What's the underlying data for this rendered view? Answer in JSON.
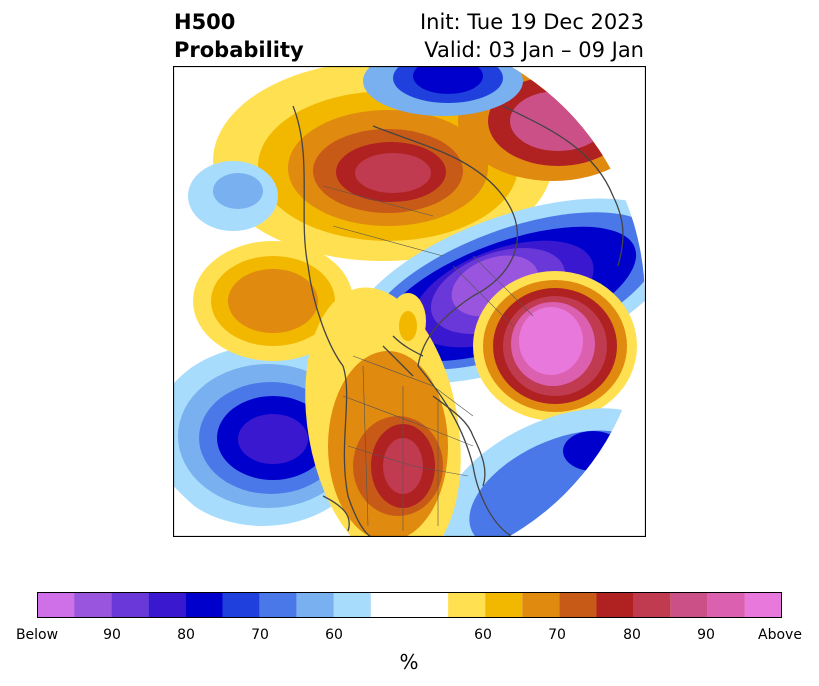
{
  "header": {
    "variable_line1": "H500",
    "variable_line2": "Probability",
    "init_line": "Init: Tue 19 Dec 2023",
    "valid_line": "Valid: 03 Jan – 09 Jan"
  },
  "colorbar": {
    "unit": "%",
    "colors": [
      "#d070e8",
      "#9a55df",
      "#6a38d8",
      "#3a18d0",
      "#0000cc",
      "#2040dd",
      "#4a78e8",
      "#78b0f0",
      "#a8dcfc",
      "#ffffff",
      "#ffe050",
      "#f2b800",
      "#e08a10",
      "#c85a18",
      "#b02222",
      "#c03a50",
      "#cc5088",
      "#dc60b0",
      "#e878dc"
    ],
    "tick_labels": [
      "Below",
      "90",
      "80",
      "70",
      "60",
      "60",
      "70",
      "80",
      "90",
      "Above"
    ]
  },
  "map": {
    "region": "North America / North Pacific / North Atlantic",
    "anomalies": [
      {
        "name": "alaska-high",
        "category": "above",
        "peak": "80"
      },
      {
        "name": "greenland-low",
        "category": "below",
        "peak": "90"
      },
      {
        "name": "atlantic-high",
        "category": "above",
        "peak": "90"
      },
      {
        "name": "pacific-low",
        "category": "below",
        "peak": "80"
      },
      {
        "name": "us-high",
        "category": "above",
        "peak": "80"
      },
      {
        "name": "west-coast-high",
        "category": "above",
        "peak": "70"
      }
    ]
  }
}
